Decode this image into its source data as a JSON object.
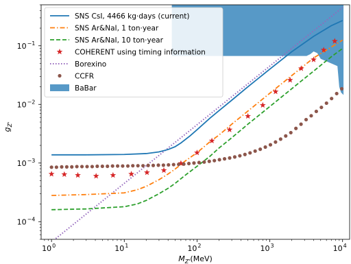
{
  "chart_data": {
    "type": "line",
    "title": "",
    "xlabel": "M_{Z'}(MeV)",
    "ylabel": "g_{Z'}",
    "xscale": "log",
    "yscale": "log",
    "xlim": [
      0.72,
      12500
    ],
    "ylim": [
      5e-05,
      0.5
    ],
    "x_ticks": [
      {
        "value": 1,
        "base": "10",
        "exp": "0"
      },
      {
        "value": 10,
        "base": "10",
        "exp": "1"
      },
      {
        "value": 100,
        "base": "10",
        "exp": "2"
      },
      {
        "value": 1000,
        "base": "10",
        "exp": "3"
      },
      {
        "value": 10000,
        "base": "10",
        "exp": "4"
      }
    ],
    "y_ticks": [
      {
        "value": 0.0001,
        "base": "10",
        "exp": "−4"
      },
      {
        "value": 0.001,
        "base": "10",
        "exp": "−3"
      },
      {
        "value": 0.01,
        "base": "10",
        "exp": "−2"
      },
      {
        "value": 0.1,
        "base": "10",
        "exp": "−1"
      }
    ],
    "grid": false,
    "legend_position": "top-left",
    "series": [
      {
        "name": "SNS CsI, 4466 kg·days (current)",
        "style": "solid",
        "color": "#1f77b4",
        "x": [
          1,
          3,
          10,
          20,
          30,
          40,
          50,
          60,
          80,
          100,
          150,
          200,
          300,
          500,
          1000,
          2000,
          4000,
          7000,
          10000
        ],
        "y": [
          0.00138,
          0.00138,
          0.0014,
          0.00145,
          0.00155,
          0.0017,
          0.0019,
          0.0022,
          0.0029,
          0.0037,
          0.0058,
          0.0078,
          0.0118,
          0.02,
          0.04,
          0.079,
          0.145,
          0.22,
          0.27
        ]
      },
      {
        "name": "SNS Ar&NaI, 1 ton·year",
        "style": "dashdot",
        "color": "#ff7f0e",
        "x": [
          1,
          3,
          10,
          15,
          20,
          30,
          40,
          50,
          70,
          100,
          150,
          200,
          300,
          500,
          1000,
          2000,
          4000,
          7000,
          10000
        ],
        "y": [
          0.00028,
          0.00029,
          0.00031,
          0.00035,
          0.0004,
          0.00052,
          0.00065,
          0.00079,
          0.0011,
          0.0015,
          0.0023,
          0.003,
          0.0046,
          0.0077,
          0.0155,
          0.031,
          0.062,
          0.095,
          0.125
        ]
      },
      {
        "name": "SNS Ar&NaI, 10 ton·year",
        "style": "dashed",
        "color": "#2ca02c",
        "x": [
          1,
          3,
          10,
          15,
          20,
          30,
          40,
          50,
          70,
          100,
          150,
          200,
          300,
          500,
          1000,
          2000,
          4000,
          7000,
          10000
        ],
        "y": [
          0.00016,
          0.000165,
          0.00018,
          0.0002,
          0.00023,
          0.0003,
          0.00037,
          0.00045,
          0.00063,
          0.00088,
          0.0013,
          0.0018,
          0.0027,
          0.0046,
          0.0092,
          0.0185,
          0.037,
          0.065,
          0.09
        ]
      },
      {
        "name": "COHERENT using timing information",
        "style": "stars",
        "color": "#d62728",
        "x": [
          1,
          1.5,
          2.3,
          4.1,
          7,
          12.5,
          20.5,
          35,
          60,
          100,
          160,
          280,
          500,
          800,
          1200,
          1900,
          2700,
          4000,
          5500,
          7800
        ],
        "y": [
          0.00065,
          0.00064,
          0.00062,
          0.0006,
          0.00062,
          0.00065,
          0.00069,
          0.00075,
          0.00099,
          0.0015,
          0.0024,
          0.0037,
          0.0063,
          0.0097,
          0.0165,
          0.026,
          0.041,
          0.058,
          0.085,
          0.12
        ]
      },
      {
        "name": "Borexino",
        "style": "dotted",
        "color": "#9467bd",
        "x": [
          1,
          10000
        ],
        "y": [
          4.5e-05,
          0.45
        ]
      },
      {
        "name": "CCFR",
        "style": "dots",
        "color": "#8c564b",
        "x": [
          1,
          1.17,
          1.38,
          1.62,
          1.9,
          2.23,
          2.62,
          3.08,
          3.62,
          4.25,
          5,
          5.87,
          6.9,
          8.1,
          9.5,
          11.2,
          13.1,
          15.4,
          18.1,
          21.3,
          25,
          29.4,
          34.5,
          40.5,
          47.6,
          55.9,
          65.7,
          77.2,
          90.7,
          106.6,
          125.3,
          147.2,
          173,
          203.2,
          238.8,
          280.6,
          329.7,
          387.4,
          455.2,
          534.9,
          628.5,
          738.5,
          867.8,
          1019.7,
          1198.1,
          1407.8,
          1654.2,
          1943.7,
          2283.9,
          2683.6,
          3153.3,
          3705.2,
          4353.7,
          5115.8,
          6011,
          7063.2,
          8299.6,
          9752
        ],
        "y": [
          0.00085,
          0.00085,
          0.00086,
          0.00086,
          0.00086,
          0.00087,
          0.00087,
          0.00087,
          0.00087,
          0.00088,
          0.00088,
          0.00088,
          0.00089,
          0.00089,
          0.00089,
          0.00089,
          0.0009,
          0.0009,
          0.0009,
          0.00091,
          0.00091,
          0.00092,
          0.00092,
          0.00093,
          0.00094,
          0.00095,
          0.00096,
          0.00098,
          0.001,
          0.00102,
          0.00104,
          0.00107,
          0.0011,
          0.00114,
          0.00118,
          0.00122,
          0.00127,
          0.00133,
          0.0014,
          0.00149,
          0.0016,
          0.00172,
          0.00187,
          0.00205,
          0.00228,
          0.00256,
          0.0029,
          0.0033,
          0.0039,
          0.0046,
          0.0055,
          0.0064,
          0.0076,
          0.0089,
          0.0105,
          0.0126,
          0.0153,
          0.0185
        ]
      },
      {
        "name": "BaBar",
        "style": "filled",
        "color": "#1f77b4",
        "x": [
          45,
          10300,
          10300,
          9500,
          9000,
          8500,
          5000,
          4500,
          4000,
          3600,
          3200,
          45
        ],
        "y": [
          0.5,
          0.5,
          0.0145,
          0.016,
          0.02,
          0.045,
          0.06,
          0.075,
          0.08,
          0.072,
          0.067,
          0.067
        ]
      }
    ]
  }
}
